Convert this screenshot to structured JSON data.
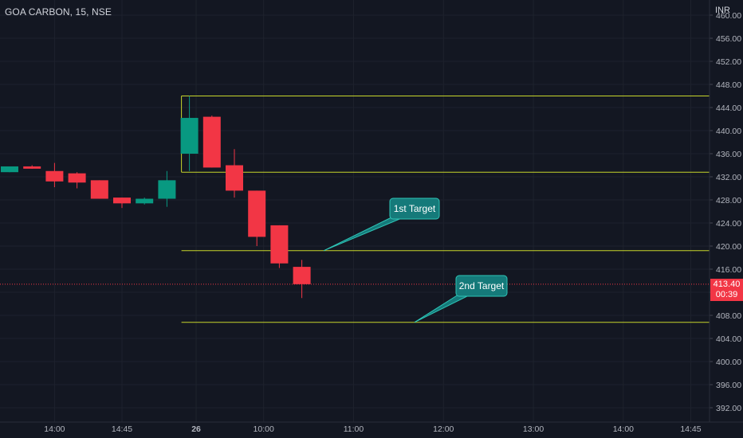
{
  "header": {
    "symbol_title": "GOA CARBON, 15, NSE",
    "currency": "INR"
  },
  "last_price": {
    "value_label": "413.40",
    "countdown": "00:39",
    "value": 413.4
  },
  "colors": {
    "background": "#131722",
    "up": "#089981",
    "down": "#f23645",
    "level_line": "#c8d62b",
    "callout": "#157a7a",
    "callout_border": "#2ec4b6",
    "grid": "#1e222d",
    "axis_text": "#b2b5be"
  },
  "chart_data": {
    "type": "candlestick",
    "title": "GOA CARBON, 15, NSE",
    "interval": "15",
    "ylim": [
      390,
      460
    ],
    "y_ticks": [
      "392.00",
      "396.00",
      "400.00",
      "404.00",
      "408.00",
      "412.00",
      "416.00",
      "420.00",
      "424.00",
      "428.00",
      "432.00",
      "436.00",
      "440.00",
      "444.00",
      "448.00",
      "452.00",
      "456.00",
      "460.00"
    ],
    "x_ticks": [
      {
        "label": "14:00",
        "bar": 2
      },
      {
        "label": "14:45",
        "bar": 5
      },
      {
        "label": "26",
        "bar": 8.3
      },
      {
        "label": "10:00",
        "bar": 11.3
      },
      {
        "label": "11:00",
        "bar": 15.3
      },
      {
        "label": "12:00",
        "bar": 19.3
      },
      {
        "label": "13:00",
        "bar": 23.3
      },
      {
        "label": "14:00",
        "bar": 27.3
      },
      {
        "label": "14:45",
        "bar": 30.3
      }
    ],
    "candles": [
      {
        "open": 432.8,
        "high": 433.8,
        "low": 432.8,
        "close": 433.8
      },
      {
        "open": 433.8,
        "high": 434.0,
        "low": 433.4,
        "close": 433.4
      },
      {
        "open": 433.0,
        "high": 434.4,
        "low": 430.2,
        "close": 431.2
      },
      {
        "open": 432.6,
        "high": 432.8,
        "low": 430.0,
        "close": 431.0
      },
      {
        "open": 431.4,
        "high": 431.4,
        "low": 428.2,
        "close": 428.2
      },
      {
        "open": 428.4,
        "high": 428.4,
        "low": 426.6,
        "close": 427.4
      },
      {
        "open": 427.4,
        "high": 428.4,
        "low": 427.2,
        "close": 428.2
      },
      {
        "open": 428.2,
        "high": 433.0,
        "low": 426.8,
        "close": 431.4
      },
      {
        "open": 436.0,
        "high": 446.0,
        "low": 433.0,
        "close": 442.2
      },
      {
        "open": 442.4,
        "high": 442.6,
        "low": 433.6,
        "close": 433.6
      },
      {
        "open": 434.0,
        "high": 436.8,
        "low": 428.4,
        "close": 429.6
      },
      {
        "open": 429.6,
        "high": 429.6,
        "low": 420.0,
        "close": 421.6
      },
      {
        "open": 423.6,
        "high": 423.6,
        "low": 416.2,
        "close": 417.0
      },
      {
        "open": 416.4,
        "high": 417.6,
        "low": 411.0,
        "close": 413.4
      }
    ],
    "levels": [
      446.0,
      432.8,
      419.2,
      406.8
    ],
    "annotations": [
      {
        "text": "1st Target",
        "level": 419.2
      },
      {
        "text": "2nd Target",
        "level": 406.8
      }
    ]
  }
}
